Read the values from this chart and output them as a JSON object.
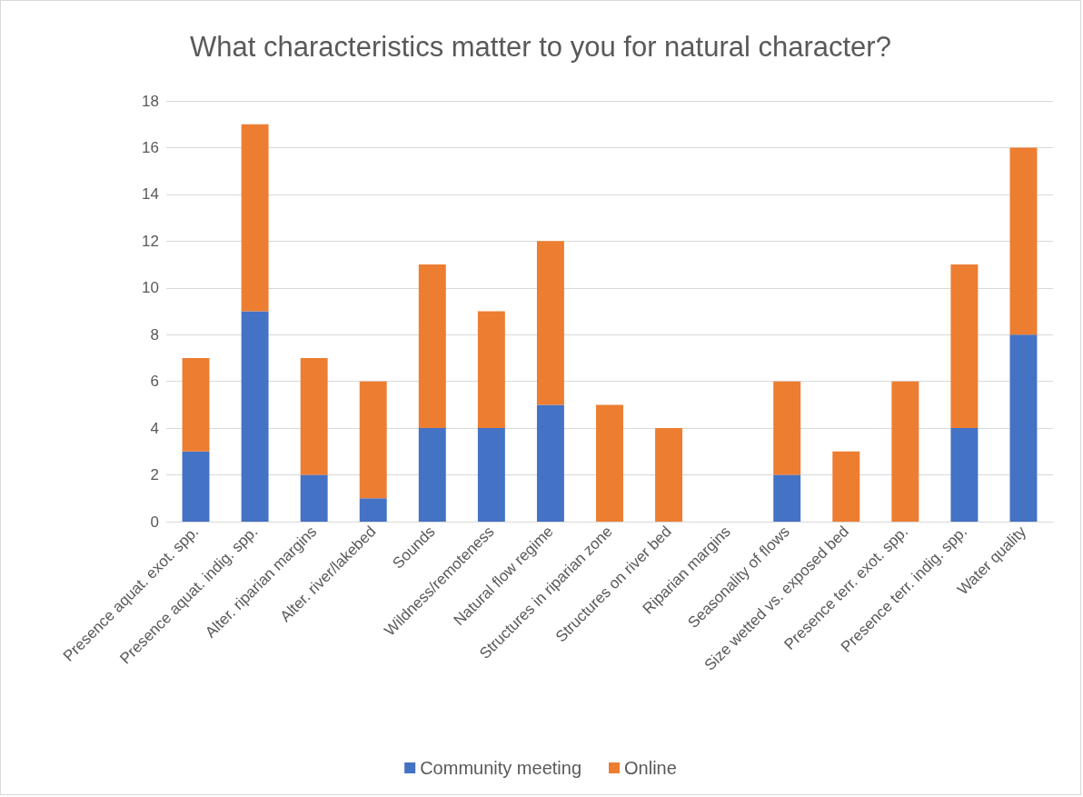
{
  "chart_data": {
    "type": "bar",
    "title": "What characteristics matter to you for natural character?",
    "categories": [
      "Presence aquat. exot. spp.",
      "Presence aquat. indig. spp.",
      "Alter. riparian margins",
      "Alter. river/lakebed",
      "Sounds",
      "Wildness/remoteness",
      "Natural flow regime",
      "Structures in riparian zone",
      "Structures on river bed",
      "Riparian margins",
      "Seasonality of flows",
      "Size wetted vs. exposed bed",
      "Presence terr. exot. spp.",
      "Presence terr. indig. spp.",
      "Water quality"
    ],
    "series": [
      {
        "name": "Community meeting",
        "color": "#4472c4",
        "values": [
          3,
          9,
          2,
          1,
          4,
          4,
          5,
          0,
          0,
          0,
          2,
          0,
          0,
          4,
          8
        ]
      },
      {
        "name": "Online",
        "color": "#ed7d31",
        "values": [
          4,
          8,
          5,
          5,
          7,
          5,
          7,
          5,
          4,
          0,
          4,
          3,
          6,
          7,
          8
        ]
      }
    ],
    "stacked": true,
    "ylim": [
      0,
      18
    ],
    "yticks": [
      0,
      2,
      4,
      6,
      8,
      10,
      12,
      14,
      16,
      18
    ],
    "grid": "y",
    "legend": "bottom"
  }
}
